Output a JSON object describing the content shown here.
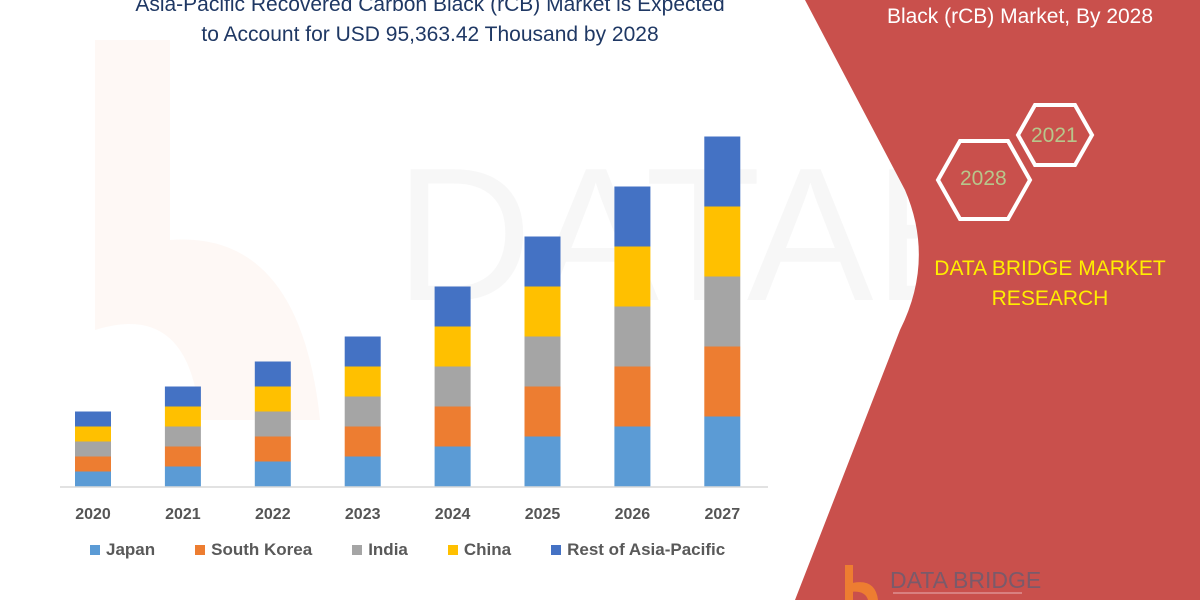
{
  "header": {
    "title_line1": "Asia-Pacific Recovered Carbon Black (rCB) Market is Expected",
    "title_line2": "to Account for USD 95,363.42 Thousand by 2028"
  },
  "side_panel": {
    "title": "Black (rCB) Market, By 2028",
    "hex_years": [
      "2021",
      "2028"
    ],
    "brand": "DATA BRIDGE MARKET",
    "brand_line2": "RESEARCH",
    "logo_text": "DATA BRIDGE",
    "panel_color": "#c9504c"
  },
  "chart_data": {
    "type": "bar",
    "stacked": true,
    "categories": [
      "2020",
      "2021",
      "2022",
      "2023",
      "2024",
      "2025",
      "2026",
      "2027"
    ],
    "series": [
      {
        "name": "Japan",
        "color": "#5b9bd5",
        "values": [
          3,
          4,
          5,
          6,
          8,
          10,
          12,
          14
        ]
      },
      {
        "name": "South Korea",
        "color": "#ed7d31",
        "values": [
          3,
          4,
          5,
          6,
          8,
          10,
          12,
          14
        ]
      },
      {
        "name": "India",
        "color": "#a5a5a5",
        "values": [
          3,
          4,
          5,
          6,
          8,
          10,
          12,
          14
        ]
      },
      {
        "name": "China",
        "color": "#ffc000",
        "values": [
          3,
          4,
          5,
          6,
          8,
          10,
          12,
          14
        ]
      },
      {
        "name": "Rest of Asia-Pacific",
        "color": "#4472c4",
        "values": [
          3,
          4,
          5,
          6,
          8,
          10,
          12,
          14
        ]
      }
    ],
    "yaxis_shown": false,
    "grid": false,
    "legend_position": "bottom"
  }
}
